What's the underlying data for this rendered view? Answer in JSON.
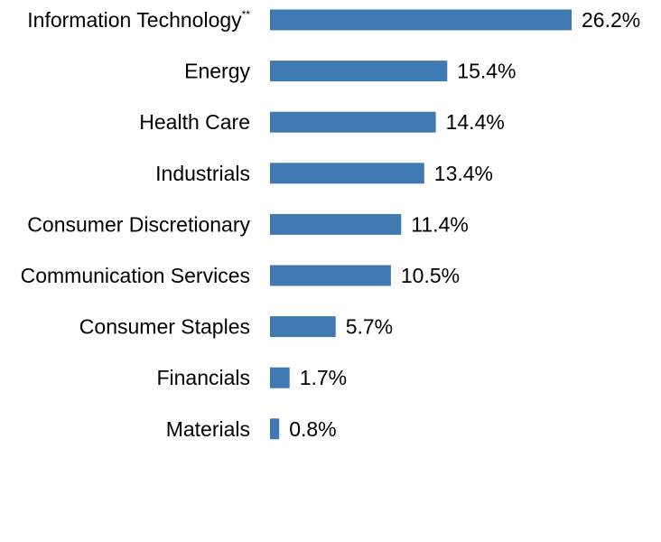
{
  "chart_data": {
    "type": "bar",
    "orientation": "horizontal",
    "categories": [
      "Information Technology",
      "Energy",
      "Health Care",
      "Industrials",
      "Consumer Discretionary",
      "Communication Services",
      "Consumer Staples",
      "Financials",
      "Materials"
    ],
    "category_footnotes": [
      "**",
      "",
      "",
      "",
      "",
      "",
      "",
      "",
      ""
    ],
    "values": [
      26.2,
      15.4,
      14.4,
      13.4,
      11.4,
      10.5,
      5.7,
      1.7,
      0.8
    ],
    "value_labels": [
      "26.2%",
      "15.4%",
      "14.4%",
      "13.4%",
      "11.4%",
      "10.5%",
      "5.7%",
      "1.7%",
      "0.8%"
    ],
    "unit": "%",
    "bar_color": "#3f79b1",
    "xlim": [
      0,
      26.2
    ],
    "grid": false,
    "legend": "none"
  }
}
